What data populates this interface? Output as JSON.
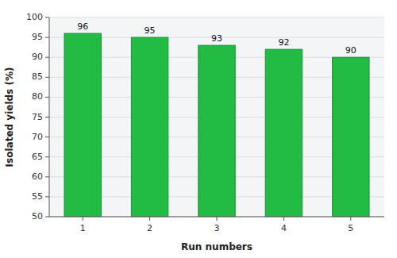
{
  "chart_data": {
    "type": "bar",
    "xlabel": "Run numbers",
    "ylabel": "Isolated yields (%)",
    "categories": [
      "1",
      "2",
      "3",
      "4",
      "5"
    ],
    "values": [
      96,
      95,
      93,
      92,
      90
    ],
    "color": "#22bb44",
    "ylim": [
      50,
      100
    ],
    "yticks": [
      50,
      55,
      60,
      65,
      70,
      75,
      80,
      85,
      90,
      95,
      100
    ],
    "grid": true,
    "data_labels": true
  }
}
